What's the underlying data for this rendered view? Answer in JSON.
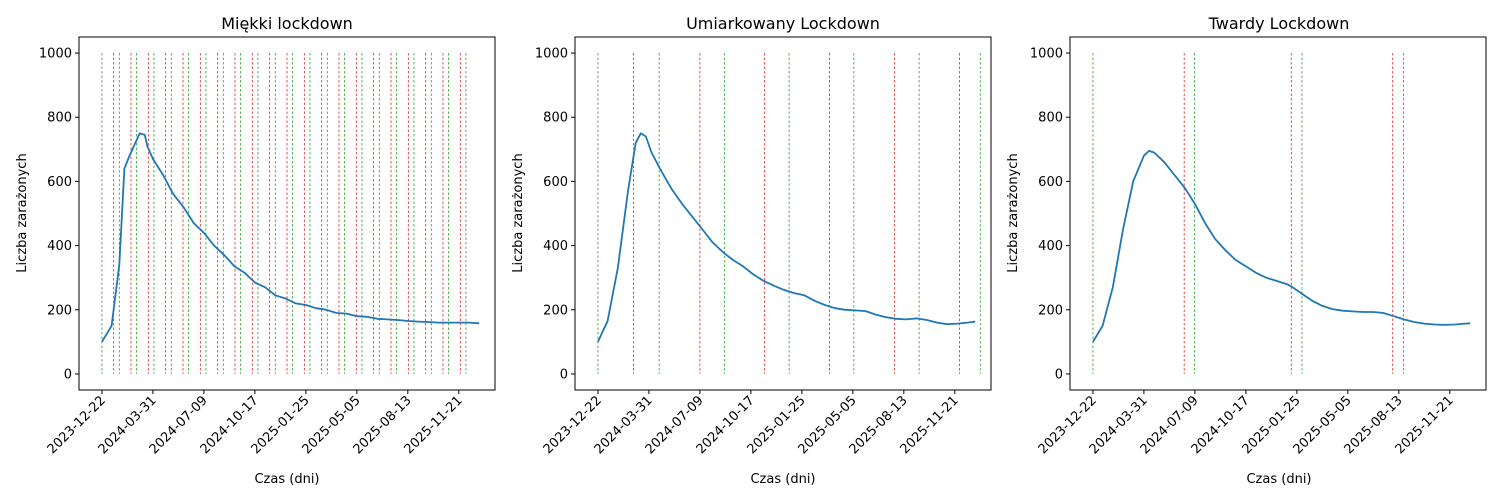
{
  "colors": {
    "line": "#1f77b4",
    "lockdown_start": "#d62728",
    "lockdown_end": "#2ca02c",
    "axes": "#000000",
    "background": "#ffffff"
  },
  "chart_data": [
    {
      "type": "line",
      "title": "Miękki lockdown",
      "xlabel": "Czas (dni)",
      "ylabel": "Liczba zarażonych",
      "xticks": [
        "2023-12-22",
        "2024-03-31",
        "2024-07-09",
        "2024-10-17",
        "2025-01-25",
        "2025-05-05",
        "2025-08-13",
        "2025-11-21"
      ],
      "yticks": [
        0,
        200,
        400,
        600,
        800,
        1000
      ],
      "xlim": [
        "2023-11-07",
        "2026-01-31"
      ],
      "ylim": [
        -50,
        1050
      ],
      "grid": false,
      "legend": "none",
      "series": [
        {
          "x": [
            "2023-12-22",
            "2024-01-10",
            "2024-01-25",
            "2024-02-04",
            "2024-02-14",
            "2024-03-05",
            "2024-03-15",
            "2024-03-20",
            "2024-03-31",
            "2024-04-20",
            "2024-05-10",
            "2024-05-30",
            "2024-06-19",
            "2024-07-09",
            "2024-07-29",
            "2024-08-18",
            "2024-09-07",
            "2024-09-27",
            "2024-10-17",
            "2024-11-06",
            "2024-11-26",
            "2024-12-16",
            "2025-01-05",
            "2025-01-25",
            "2025-02-14",
            "2025-03-06",
            "2025-03-26",
            "2025-04-15",
            "2025-05-05",
            "2025-05-25",
            "2025-06-14",
            "2025-07-04",
            "2025-07-24",
            "2025-08-13",
            "2025-09-02",
            "2025-09-22",
            "2025-10-12",
            "2025-11-01",
            "2025-11-21",
            "2025-12-11",
            "2025-12-31"
          ],
          "y": [
            100,
            150,
            340,
            640,
            680,
            750,
            745,
            710,
            670,
            620,
            560,
            520,
            470,
            440,
            400,
            370,
            335,
            315,
            285,
            270,
            245,
            235,
            220,
            215,
            205,
            200,
            190,
            188,
            180,
            178,
            172,
            170,
            168,
            165,
            163,
            162,
            160,
            160,
            160,
            160,
            158
          ]
        }
      ],
      "lockdown_starts": [
        "2024-01-14",
        "2024-02-17",
        "2024-03-22",
        "2024-04-25",
        "2024-05-29",
        "2024-07-02",
        "2024-08-05",
        "2024-09-08",
        "2024-10-12",
        "2024-11-15",
        "2024-12-19",
        "2025-01-22",
        "2025-02-25",
        "2025-03-31",
        "2025-05-04",
        "2025-06-07",
        "2025-07-11",
        "2025-08-14",
        "2025-09-17",
        "2025-10-21",
        "2025-11-24"
      ],
      "lockdown_ends": [
        "2023-12-22",
        "2024-01-25",
        "2024-02-28",
        "2024-04-02",
        "2024-05-06",
        "2024-06-09",
        "2024-07-13",
        "2024-08-16",
        "2024-09-19",
        "2024-10-23",
        "2024-11-26",
        "2024-12-30",
        "2025-02-02",
        "2025-03-08",
        "2025-04-11",
        "2025-05-15",
        "2025-06-18",
        "2025-07-22",
        "2025-08-25",
        "2025-09-28",
        "2025-11-01",
        "2025-12-05"
      ]
    },
    {
      "type": "line",
      "title": "Umiarkowany Lockdown",
      "xlabel": "Czas (dni)",
      "ylabel": "Liczba zarażonych",
      "xticks": [
        "2023-12-22",
        "2024-03-31",
        "2024-07-09",
        "2024-10-17",
        "2025-01-25",
        "2025-05-05",
        "2025-08-13",
        "2025-11-21"
      ],
      "yticks": [
        0,
        200,
        400,
        600,
        800,
        1000
      ],
      "xlim": [
        "2023-11-07",
        "2026-01-31"
      ],
      "ylim": [
        -50,
        1050
      ],
      "grid": false,
      "legend": "none",
      "series": [
        {
          "x": [
            "2023-12-22",
            "2024-01-10",
            "2024-01-30",
            "2024-02-19",
            "2024-03-05",
            "2024-03-15",
            "2024-03-25",
            "2024-04-05",
            "2024-04-25",
            "2024-05-15",
            "2024-06-04",
            "2024-06-24",
            "2024-07-14",
            "2024-08-03",
            "2024-08-23",
            "2024-09-12",
            "2024-10-02",
            "2024-10-22",
            "2024-11-11",
            "2024-12-01",
            "2024-12-21",
            "2025-01-10",
            "2025-01-30",
            "2025-02-19",
            "2025-03-11",
            "2025-03-31",
            "2025-04-20",
            "2025-05-10",
            "2025-05-30",
            "2025-06-19",
            "2025-07-09",
            "2025-07-29",
            "2025-08-18",
            "2025-09-07",
            "2025-09-27",
            "2025-10-17",
            "2025-11-06",
            "2025-11-26",
            "2025-12-16",
            "2025-12-31"
          ],
          "y": [
            100,
            165,
            330,
            570,
            720,
            750,
            740,
            690,
            630,
            575,
            530,
            490,
            450,
            410,
            380,
            355,
            335,
            310,
            290,
            275,
            262,
            252,
            245,
            228,
            215,
            205,
            200,
            198,
            196,
            185,
            177,
            172,
            170,
            173,
            168,
            160,
            155,
            157,
            160,
            163
          ]
        }
      ],
      "lockdown_starts": [
        "2024-03-01",
        "2024-07-09",
        "2024-11-13",
        "2025-03-20",
        "2025-07-26",
        "2025-11-30"
      ],
      "lockdown_ends": [
        "2023-12-22",
        "2024-04-20",
        "2024-08-26",
        "2024-12-31",
        "2025-05-07",
        "2025-09-12",
        "2026-01-10"
      ]
    },
    {
      "type": "line",
      "title": "Twardy Lockdown",
      "xlabel": "Czas (dni)",
      "ylabel": "Liczba zarażonych",
      "xticks": [
        "2023-12-22",
        "2024-03-31",
        "2024-07-09",
        "2024-10-17",
        "2025-01-25",
        "2025-05-05",
        "2025-08-13",
        "2025-11-21"
      ],
      "yticks": [
        0,
        200,
        400,
        600,
        800,
        1000
      ],
      "xlim": [
        "2023-11-07",
        "2026-01-31"
      ],
      "ylim": [
        -50,
        1050
      ],
      "grid": false,
      "legend": "none",
      "series": [
        {
          "x": [
            "2023-12-22",
            "2024-01-10",
            "2024-01-30",
            "2024-02-19",
            "2024-03-10",
            "2024-03-31",
            "2024-04-10",
            "2024-04-20",
            "2024-05-10",
            "2024-05-30",
            "2024-06-19",
            "2024-07-09",
            "2024-07-29",
            "2024-08-18",
            "2024-09-07",
            "2024-09-27",
            "2024-10-17",
            "2024-11-06",
            "2024-11-26",
            "2024-12-16",
            "2025-01-05",
            "2025-01-15",
            "2025-02-04",
            "2025-02-24",
            "2025-03-16",
            "2025-04-05",
            "2025-04-25",
            "2025-05-15",
            "2025-06-04",
            "2025-06-24",
            "2025-07-14",
            "2025-08-03",
            "2025-08-23",
            "2025-09-12",
            "2025-10-02",
            "2025-10-22",
            "2025-11-11",
            "2025-12-01",
            "2025-12-21",
            "2025-12-31"
          ],
          "y": [
            100,
            150,
            270,
            450,
            600,
            680,
            695,
            690,
            660,
            620,
            580,
            530,
            470,
            420,
            385,
            355,
            335,
            315,
            300,
            290,
            280,
            272,
            250,
            228,
            212,
            202,
            197,
            195,
            193,
            193,
            190,
            180,
            170,
            162,
            157,
            154,
            153,
            154,
            157,
            158
          ]
        }
      ],
      "lockdown_starts": [
        "2024-06-18",
        "2025-01-14",
        "2025-08-01"
      ],
      "lockdown_ends": [
        "2023-12-22",
        "2024-07-08",
        "2025-02-04",
        "2025-08-22"
      ]
    }
  ]
}
